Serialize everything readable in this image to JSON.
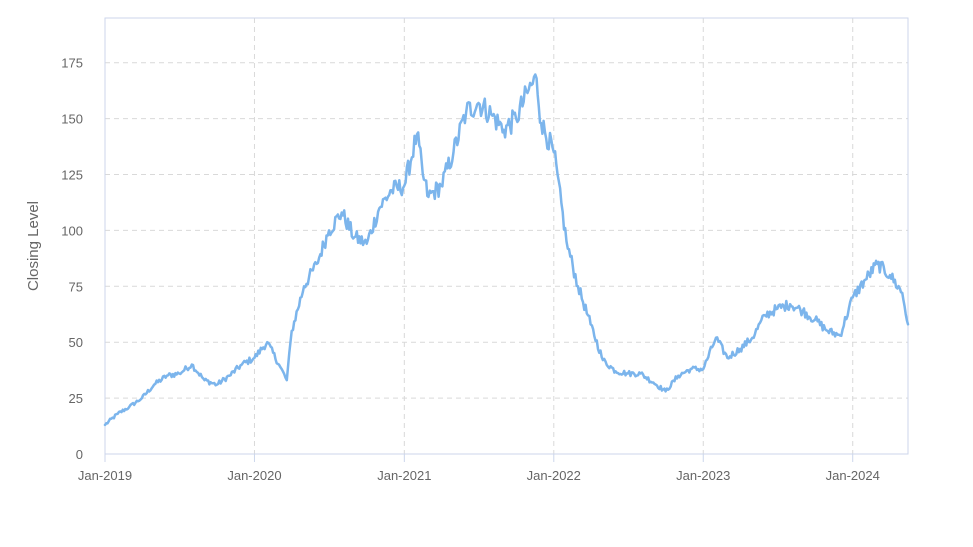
{
  "chart_data": {
    "type": "line",
    "title": "",
    "xlabel": "",
    "ylabel": "Closing Level",
    "ylim": [
      0,
      195
    ],
    "xlim": [
      "2019-01-01",
      "2024-05-15"
    ],
    "y_ticks": [
      0,
      25,
      50,
      75,
      100,
      125,
      150,
      175
    ],
    "x_ticks": [
      {
        "date": "2019-01-01",
        "label": "Jan-2019"
      },
      {
        "date": "2020-01-01",
        "label": "Jan-2020"
      },
      {
        "date": "2021-01-01",
        "label": "Jan-2021"
      },
      {
        "date": "2022-01-01",
        "label": "Jan-2022"
      },
      {
        "date": "2023-01-01",
        "label": "Jan-2023"
      },
      {
        "date": "2024-01-01",
        "label": "Jan-2024"
      }
    ],
    "grid": true,
    "legend": "none",
    "colors": {
      "line": "#7cb5ec",
      "grid": "#d9d9d9",
      "frame": "#ccd6eb",
      "text": "#666666"
    },
    "series": [
      {
        "name": "",
        "x": [
          "2019-01-01",
          "2019-02-01",
          "2019-03-01",
          "2019-04-01",
          "2019-05-01",
          "2019-06-01",
          "2019-07-01",
          "2019-08-01",
          "2019-09-01",
          "2019-10-01",
          "2019-11-01",
          "2019-12-01",
          "2020-01-01",
          "2020-02-01",
          "2020-03-01",
          "2020-03-20",
          "2020-04-01",
          "2020-05-01",
          "2020-06-01",
          "2020-07-01",
          "2020-08-01",
          "2020-09-01",
          "2020-10-01",
          "2020-11-01",
          "2020-12-01",
          "2021-01-01",
          "2021-02-01",
          "2021-02-15",
          "2021-03-01",
          "2021-04-01",
          "2021-05-01",
          "2021-06-01",
          "2021-07-01",
          "2021-08-01",
          "2021-09-01",
          "2021-10-01",
          "2021-11-01",
          "2021-11-20",
          "2021-12-01",
          "2022-01-01",
          "2022-02-01",
          "2022-03-01",
          "2022-04-01",
          "2022-05-01",
          "2022-06-01",
          "2022-07-01",
          "2022-08-01",
          "2022-09-01",
          "2022-10-01",
          "2022-11-01",
          "2022-12-01",
          "2023-01-01",
          "2023-02-01",
          "2023-03-01",
          "2023-04-01",
          "2023-05-01",
          "2023-06-01",
          "2023-07-01",
          "2023-08-01",
          "2023-09-01",
          "2023-10-01",
          "2023-11-01",
          "2023-12-01",
          "2024-01-01",
          "2024-02-01",
          "2024-03-01",
          "2024-04-01",
          "2024-05-01",
          "2024-05-15"
        ],
        "values": [
          13,
          18,
          21,
          25,
          31,
          35,
          36,
          40,
          33,
          31,
          35,
          40,
          43,
          50,
          40,
          33,
          55,
          75,
          85,
          100,
          108,
          97,
          94,
          110,
          118,
          120,
          143,
          125,
          115,
          120,
          135,
          153,
          157,
          152,
          145,
          150,
          163,
          168,
          148,
          135,
          95,
          75,
          58,
          42,
          37,
          36,
          36,
          32,
          28,
          35,
          38,
          38,
          52,
          43,
          47,
          52,
          62,
          65,
          67,
          64,
          60,
          55,
          53,
          70,
          78,
          85,
          80,
          72,
          58
        ]
      }
    ]
  }
}
